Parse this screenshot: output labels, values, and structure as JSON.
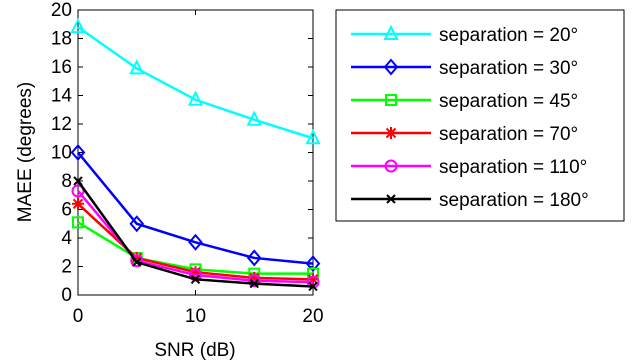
{
  "chart_data": {
    "type": "line",
    "title": "",
    "xlabel": "SNR (dB)",
    "ylabel": "MAEE (degrees)",
    "x": [
      0,
      5,
      10,
      15,
      20
    ],
    "xlim": [
      0,
      20
    ],
    "ylim": [
      0,
      20
    ],
    "xticks": [
      "0",
      "10",
      "20"
    ],
    "yticks": [
      "0",
      "2",
      "4",
      "6",
      "8",
      "10",
      "12",
      "14",
      "16",
      "18",
      "20"
    ],
    "grid": false,
    "legend_position": "right-outside-top",
    "series": [
      {
        "name": "separation = 20°",
        "color": "#00ffff",
        "marker": "triangle",
        "values": [
          18.8,
          15.9,
          13.7,
          12.3,
          11.0
        ]
      },
      {
        "name": "separation = 30°",
        "color": "#0000ff",
        "marker": "diamond",
        "values": [
          10.0,
          5.0,
          3.7,
          2.6,
          2.2
        ]
      },
      {
        "name": "separation = 45°",
        "color": "#00ff00",
        "marker": "square",
        "values": [
          5.1,
          2.6,
          1.8,
          1.5,
          1.5
        ]
      },
      {
        "name": "separation = 70°",
        "color": "#ff0000",
        "marker": "asterisk",
        "values": [
          6.4,
          2.6,
          1.6,
          1.2,
          1.1
        ]
      },
      {
        "name": "separation = 110°",
        "color": "#ff00ff",
        "marker": "circle",
        "values": [
          7.3,
          2.4,
          1.4,
          1.0,
          0.9
        ]
      },
      {
        "name": "separation = 180°",
        "color": "#000000",
        "marker": "x",
        "values": [
          8.0,
          2.3,
          1.1,
          0.8,
          0.6
        ]
      }
    ]
  }
}
